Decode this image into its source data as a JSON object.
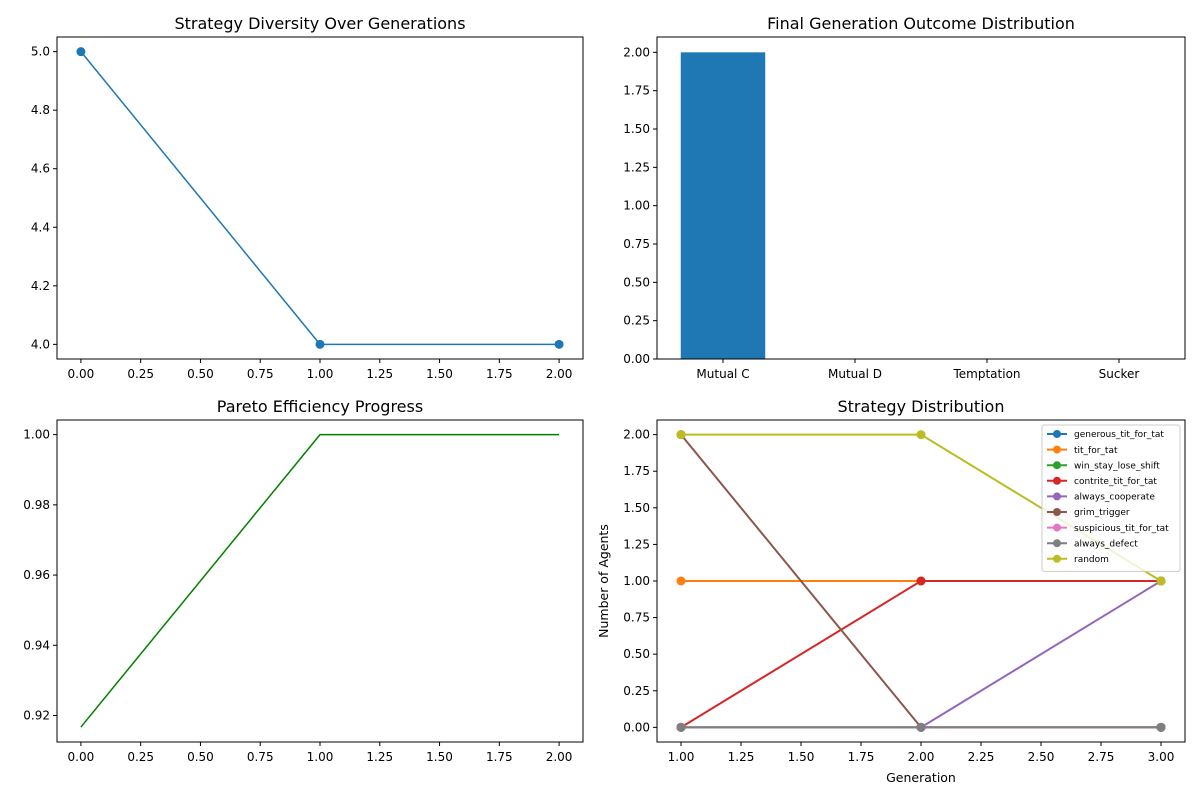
{
  "chart_data": [
    {
      "type": "line",
      "title": "Strategy Diversity Over Generations",
      "xlabel": "",
      "ylabel": "",
      "xlim": [
        -0.1,
        2.1
      ],
      "ylim": [
        3.95,
        5.05
      ],
      "xticks": [
        "0.00",
        "0.25",
        "0.50",
        "0.75",
        "1.00",
        "1.25",
        "1.50",
        "1.75",
        "2.00"
      ],
      "xtick_values": [
        0,
        0.25,
        0.5,
        0.75,
        1,
        1.25,
        1.5,
        1.75,
        2
      ],
      "yticks": [
        "4.0",
        "4.2",
        "4.4",
        "4.6",
        "4.8",
        "5.0"
      ],
      "ytick_values": [
        4.0,
        4.2,
        4.4,
        4.6,
        4.8,
        5.0
      ],
      "grid": false,
      "series": [
        {
          "x": [
            0,
            1,
            2
          ],
          "y": [
            5,
            4,
            4
          ],
          "color": "#1f77b4",
          "marker": "circle"
        }
      ]
    },
    {
      "type": "bar",
      "title": "Final Generation Outcome Distribution",
      "xlabel": "",
      "ylabel": "",
      "categories": [
        "Mutual C",
        "Mutual D",
        "Temptation",
        "Sucker"
      ],
      "values": [
        2,
        0,
        0,
        0
      ],
      "ylim": [
        0,
        2.1
      ],
      "yticks": [
        "0.00",
        "0.25",
        "0.50",
        "0.75",
        "1.00",
        "1.25",
        "1.50",
        "1.75",
        "2.00"
      ],
      "ytick_values": [
        0,
        0.25,
        0.5,
        0.75,
        1,
        1.25,
        1.5,
        1.75,
        2
      ],
      "grid": false,
      "color": "#1f77b4"
    },
    {
      "type": "line",
      "title": "Pareto Efficiency Progress",
      "xlabel": "",
      "ylabel": "",
      "xlim": [
        -0.1,
        2.1
      ],
      "ylim": [
        0.91245,
        1.00417
      ],
      "xticks": [
        "0.00",
        "0.25",
        "0.50",
        "0.75",
        "1.00",
        "1.25",
        "1.50",
        "1.75",
        "2.00"
      ],
      "xtick_values": [
        0,
        0.25,
        0.5,
        0.75,
        1,
        1.25,
        1.5,
        1.75,
        2
      ],
      "yticks": [
        "0.92",
        "0.94",
        "0.96",
        "0.98",
        "1.00"
      ],
      "ytick_values": [
        0.92,
        0.94,
        0.96,
        0.98,
        1.0
      ],
      "grid": false,
      "series": [
        {
          "x": [
            0,
            1,
            2
          ],
          "y": [
            0.9167,
            1.0,
            1.0
          ],
          "color": "#008000",
          "marker": "none"
        }
      ]
    },
    {
      "type": "line",
      "title": "Strategy Distribution",
      "xlabel": "Generation",
      "ylabel": "Number of Agents",
      "xlim": [
        0.9,
        3.1
      ],
      "ylim": [
        -0.1,
        2.1
      ],
      "xticks": [
        "1.00",
        "1.25",
        "1.50",
        "1.75",
        "2.00",
        "2.25",
        "2.50",
        "2.75",
        "3.00"
      ],
      "xtick_values": [
        1,
        1.25,
        1.5,
        1.75,
        2,
        2.25,
        2.5,
        2.75,
        3
      ],
      "yticks": [
        "0.00",
        "0.25",
        "0.50",
        "0.75",
        "1.00",
        "1.25",
        "1.50",
        "1.75",
        "2.00"
      ],
      "ytick_values": [
        0,
        0.25,
        0.5,
        0.75,
        1,
        1.25,
        1.5,
        1.75,
        2
      ],
      "grid": false,
      "legend": "top-right",
      "series": [
        {
          "name": "generous_tit_for_tat",
          "x": [
            1,
            2,
            3
          ],
          "y": [
            0,
            0,
            0
          ],
          "color": "#1f77b4"
        },
        {
          "name": "tit_for_tat",
          "x": [
            1,
            2,
            3
          ],
          "y": [
            1,
            1,
            1
          ],
          "color": "#ff7f0e"
        },
        {
          "name": "win_stay_lose_shift",
          "x": [
            1,
            2,
            3
          ],
          "y": [
            0,
            0,
            0
          ],
          "color": "#2ca02c"
        },
        {
          "name": "contrite_tit_for_tat",
          "x": [
            1,
            2,
            3
          ],
          "y": [
            0,
            1,
            1
          ],
          "color": "#d62728"
        },
        {
          "name": "always_cooperate",
          "x": [
            1,
            2,
            3
          ],
          "y": [
            0,
            0,
            1
          ],
          "color": "#9467bd"
        },
        {
          "name": "grim_trigger",
          "x": [
            1,
            2,
            3
          ],
          "y": [
            2,
            0,
            0
          ],
          "color": "#8c564b"
        },
        {
          "name": "suspicious_tit_for_tat",
          "x": [
            1,
            2,
            3
          ],
          "y": [
            0,
            0,
            0
          ],
          "color": "#e377c2"
        },
        {
          "name": "always_defect",
          "x": [
            1,
            2,
            3
          ],
          "y": [
            0,
            0,
            0
          ],
          "color": "#7f7f7f"
        },
        {
          "name": "random",
          "x": [
            1,
            2,
            3
          ],
          "y": [
            2,
            2,
            1
          ],
          "color": "#bcbd22"
        }
      ]
    }
  ]
}
